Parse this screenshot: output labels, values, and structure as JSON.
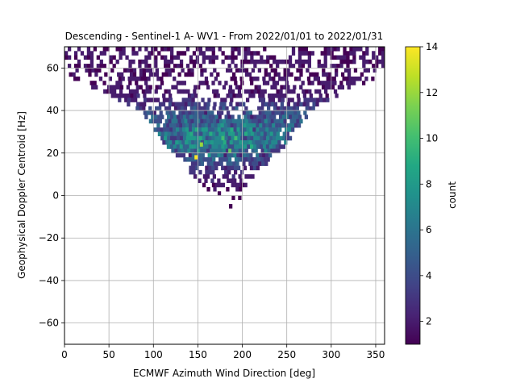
{
  "chart_data": {
    "type": "heatmap",
    "title": "Descending - Sentinel-1 A- WV1 - From 2022/01/01 to 2022/01/31",
    "xlabel": "ECMWF Azimuth Wind Direction [deg]",
    "ylabel": "Geophysical Doppler Centroid [Hz]",
    "xlim": [
      0,
      360
    ],
    "ylim": [
      -70,
      70
    ],
    "xticks": [
      0,
      50,
      100,
      150,
      200,
      250,
      300,
      350
    ],
    "yticks": [
      -60,
      -40,
      -20,
      0,
      20,
      40,
      60
    ],
    "grid": true,
    "bin_width_x": 3.6,
    "bin_height_y": 2.0,
    "colorbar": {
      "label": "count",
      "range": [
        1,
        14
      ],
      "ticks": [
        2,
        4,
        6,
        8,
        10,
        12,
        14
      ],
      "colormap": "viridis"
    },
    "distribution": {
      "description_values": "counts per bin, V-shaped cloud: wide spread near top (y 40-70 across x 0-360), narrowing to x 130-210 at y 0-20",
      "peak_count": 14,
      "peak_bins": [
        {
          "x": 148,
          "y": 18,
          "count": 14
        },
        {
          "x": 154,
          "y": 24,
          "count": 12
        },
        {
          "x": 186,
          "y": 21,
          "count": 11
        }
      ],
      "core": {
        "x_center": 170,
        "y_center": 25,
        "typical_count": 6
      },
      "lowest_occupied_y": -7,
      "bins": [
        {
          "y": 69,
          "xmin": 0,
          "xmax": 360,
          "density": 0.45,
          "mean": 1.5
        },
        {
          "y": 67,
          "xmin": 0,
          "xmax": 360,
          "density": 0.55,
          "mean": 1.6
        },
        {
          "y": 65,
          "xmin": 0,
          "xmax": 360,
          "density": 0.55,
          "mean": 1.6
        },
        {
          "y": 63,
          "xmin": 0,
          "xmax": 360,
          "density": 0.55,
          "mean": 1.7
        },
        {
          "y": 61,
          "xmin": 0,
          "xmax": 360,
          "density": 0.5,
          "mean": 1.6
        },
        {
          "y": 59,
          "xmin": 5,
          "xmax": 355,
          "density": 0.5,
          "mean": 1.6
        },
        {
          "y": 57,
          "xmin": 5,
          "xmax": 350,
          "density": 0.45,
          "mean": 1.5
        },
        {
          "y": 55,
          "xmin": 10,
          "xmax": 345,
          "density": 0.4,
          "mean": 1.5
        },
        {
          "y": 53,
          "xmin": 25,
          "xmax": 335,
          "density": 0.45,
          "mean": 1.6
        },
        {
          "y": 51,
          "xmin": 30,
          "xmax": 325,
          "density": 0.5,
          "mean": 1.7
        },
        {
          "y": 49,
          "xmin": 40,
          "xmax": 315,
          "density": 0.5,
          "mean": 1.8
        },
        {
          "y": 47,
          "xmin": 45,
          "xmax": 305,
          "density": 0.55,
          "mean": 2.0
        },
        {
          "y": 45,
          "xmin": 60,
          "xmax": 295,
          "density": 0.6,
          "mean": 2.3
        },
        {
          "y": 43,
          "xmin": 70,
          "xmax": 285,
          "density": 0.65,
          "mean": 2.8
        },
        {
          "y": 41,
          "xmin": 80,
          "xmax": 280,
          "density": 0.7,
          "mean": 3.2
        },
        {
          "y": 39,
          "xmin": 85,
          "xmax": 275,
          "density": 0.75,
          "mean": 3.6
        },
        {
          "y": 37,
          "xmin": 90,
          "xmax": 270,
          "density": 0.8,
          "mean": 4.0
        },
        {
          "y": 35,
          "xmin": 95,
          "xmax": 265,
          "density": 0.85,
          "mean": 4.3
        },
        {
          "y": 33,
          "xmin": 100,
          "xmax": 262,
          "density": 0.85,
          "mean": 4.6
        },
        {
          "y": 31,
          "xmin": 100,
          "xmax": 258,
          "density": 0.85,
          "mean": 4.8
        },
        {
          "y": 29,
          "xmin": 105,
          "xmax": 255,
          "density": 0.85,
          "mean": 5.0
        },
        {
          "y": 27,
          "xmin": 108,
          "xmax": 252,
          "density": 0.85,
          "mean": 5.0
        },
        {
          "y": 25,
          "xmin": 110,
          "xmax": 250,
          "density": 0.8,
          "mean": 4.9
        },
        {
          "y": 23,
          "xmin": 115,
          "xmax": 245,
          "density": 0.8,
          "mean": 4.6
        },
        {
          "y": 21,
          "xmin": 120,
          "xmax": 240,
          "density": 0.75,
          "mean": 4.2
        },
        {
          "y": 19,
          "xmin": 125,
          "xmax": 235,
          "density": 0.7,
          "mean": 3.7
        },
        {
          "y": 17,
          "xmin": 130,
          "xmax": 230,
          "density": 0.65,
          "mean": 3.2
        },
        {
          "y": 15,
          "xmin": 135,
          "xmax": 225,
          "density": 0.6,
          "mean": 2.7
        },
        {
          "y": 13,
          "xmin": 140,
          "xmax": 220,
          "density": 0.55,
          "mean": 2.3
        },
        {
          "y": 11,
          "xmin": 140,
          "xmax": 215,
          "density": 0.5,
          "mean": 2.0
        },
        {
          "y": 9,
          "xmin": 145,
          "xmax": 210,
          "density": 0.45,
          "mean": 1.8
        },
        {
          "y": 7,
          "xmin": 150,
          "xmax": 205,
          "density": 0.4,
          "mean": 1.6
        },
        {
          "y": 5,
          "xmin": 155,
          "xmax": 205,
          "density": 0.35,
          "mean": 1.5
        },
        {
          "y": 3,
          "xmin": 160,
          "xmax": 205,
          "density": 0.3,
          "mean": 1.4
        },
        {
          "y": 1,
          "xmin": 165,
          "xmax": 200,
          "density": 0.25,
          "mean": 1.3
        },
        {
          "y": -1,
          "xmin": 170,
          "xmax": 200,
          "density": 0.2,
          "mean": 1.2
        },
        {
          "y": -3,
          "xmin": 175,
          "xmax": 200,
          "density": 0.15,
          "mean": 1.1
        },
        {
          "y": -5,
          "xmin": 185,
          "xmax": 195,
          "density": 0.15,
          "mean": 1.0
        },
        {
          "y": -7,
          "xmin": 185,
          "xmax": 195,
          "density": 0.1,
          "mean": 1.0
        }
      ]
    }
  }
}
